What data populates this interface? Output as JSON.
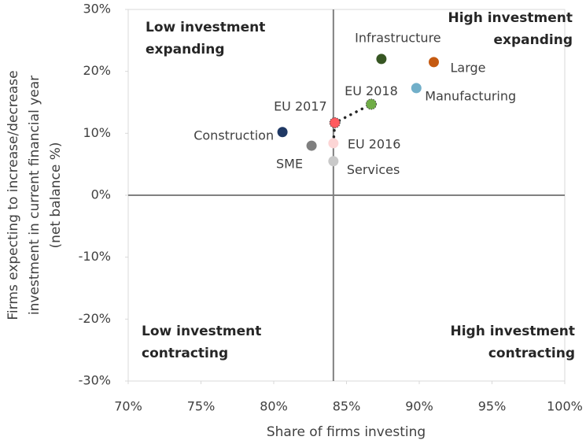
{
  "chart_data": {
    "type": "scatter",
    "x_label": "Share of firms investing",
    "y_label": [
      "Firms expecting to increase/decrease",
      "investment in current financial year",
      "(net balance %)"
    ],
    "xlim": [
      70,
      100
    ],
    "xticks": [
      {
        "value": 70,
        "label": "70%"
      },
      {
        "value": 75,
        "label": "75%"
      },
      {
        "value": 80,
        "label": "80%"
      },
      {
        "value": 85,
        "label": "85%"
      },
      {
        "value": 90,
        "label": "90%"
      },
      {
        "value": 95,
        "label": "95%"
      },
      {
        "value": 100,
        "label": "100%"
      }
    ],
    "ylim": [
      -30,
      30
    ],
    "yticks": [
      {
        "value": -30,
        "label": "-30%"
      },
      {
        "value": -20,
        "label": "-20%"
      },
      {
        "value": -10,
        "label": "-10%"
      },
      {
        "value": 0,
        "label": "0%"
      },
      {
        "value": 10,
        "label": "10%"
      },
      {
        "value": 20,
        "label": "20%"
      },
      {
        "value": 30,
        "label": "30%"
      }
    ],
    "reference_x": 84.1,
    "reference_y": 0,
    "quadrants": {
      "top_left": [
        "Low investment",
        "expanding"
      ],
      "top_right": [
        "High investment",
        "expanding"
      ],
      "bottom_left": [
        "Low investment",
        "contracting"
      ],
      "bottom_right": [
        "High investment",
        "contracting"
      ]
    },
    "series": [
      {
        "labels": [
          "Infrastructure",
          "Large",
          "Manufacturing",
          "Construction",
          "SME",
          "Services"
        ],
        "x": [
          87.4,
          91.0,
          89.8,
          80.6,
          82.6,
          84.1
        ],
        "y": [
          22,
          21.5,
          17.3,
          10.2,
          8.0,
          5.5
        ],
        "colors": [
          "#375623",
          "#c55a11",
          "#71afc9",
          "#1f3864",
          "#7f7f7f",
          "#c9c9c9"
        ]
      },
      {
        "labels": [
          "EU 2016",
          "EU 2017",
          "EU 2018"
        ],
        "x": [
          84.1,
          84.2,
          86.7
        ],
        "y": [
          8.4,
          11.7,
          14.7
        ],
        "colors": [
          "#fcd5d5",
          "#ff5a5f",
          "#70ad47"
        ],
        "line": "dotted"
      }
    ]
  }
}
